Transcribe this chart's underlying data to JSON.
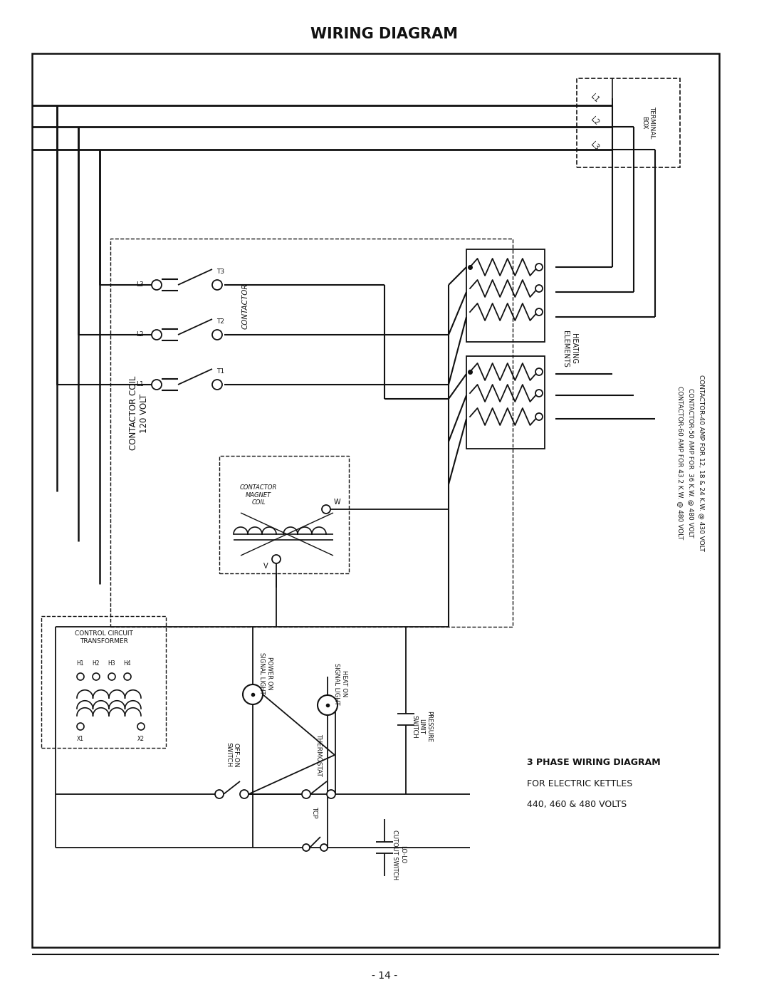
{
  "title": "WIRING DIAGRAM",
  "page_number": "- 14 -",
  "bg": "#ffffff",
  "lc": "#111111",
  "tc": "#111111",
  "right_texts": [
    "CONTACTOR-40 AMP FOR 12, 18 & 24 K.W. @ 430 VOLT",
    "CONTACTOR-50 AMP FOR  36 K.W. @ 480 VOLT",
    "CONTACTOR-60 AMP FOR 43.2 K.W. @ 480 VOLT"
  ],
  "bottom_right_texts": [
    "3 PHASE WIRING DIAGRAM",
    "FOR ELECTRIC KETTLES",
    "440, 460 & 480 VOLTS"
  ]
}
